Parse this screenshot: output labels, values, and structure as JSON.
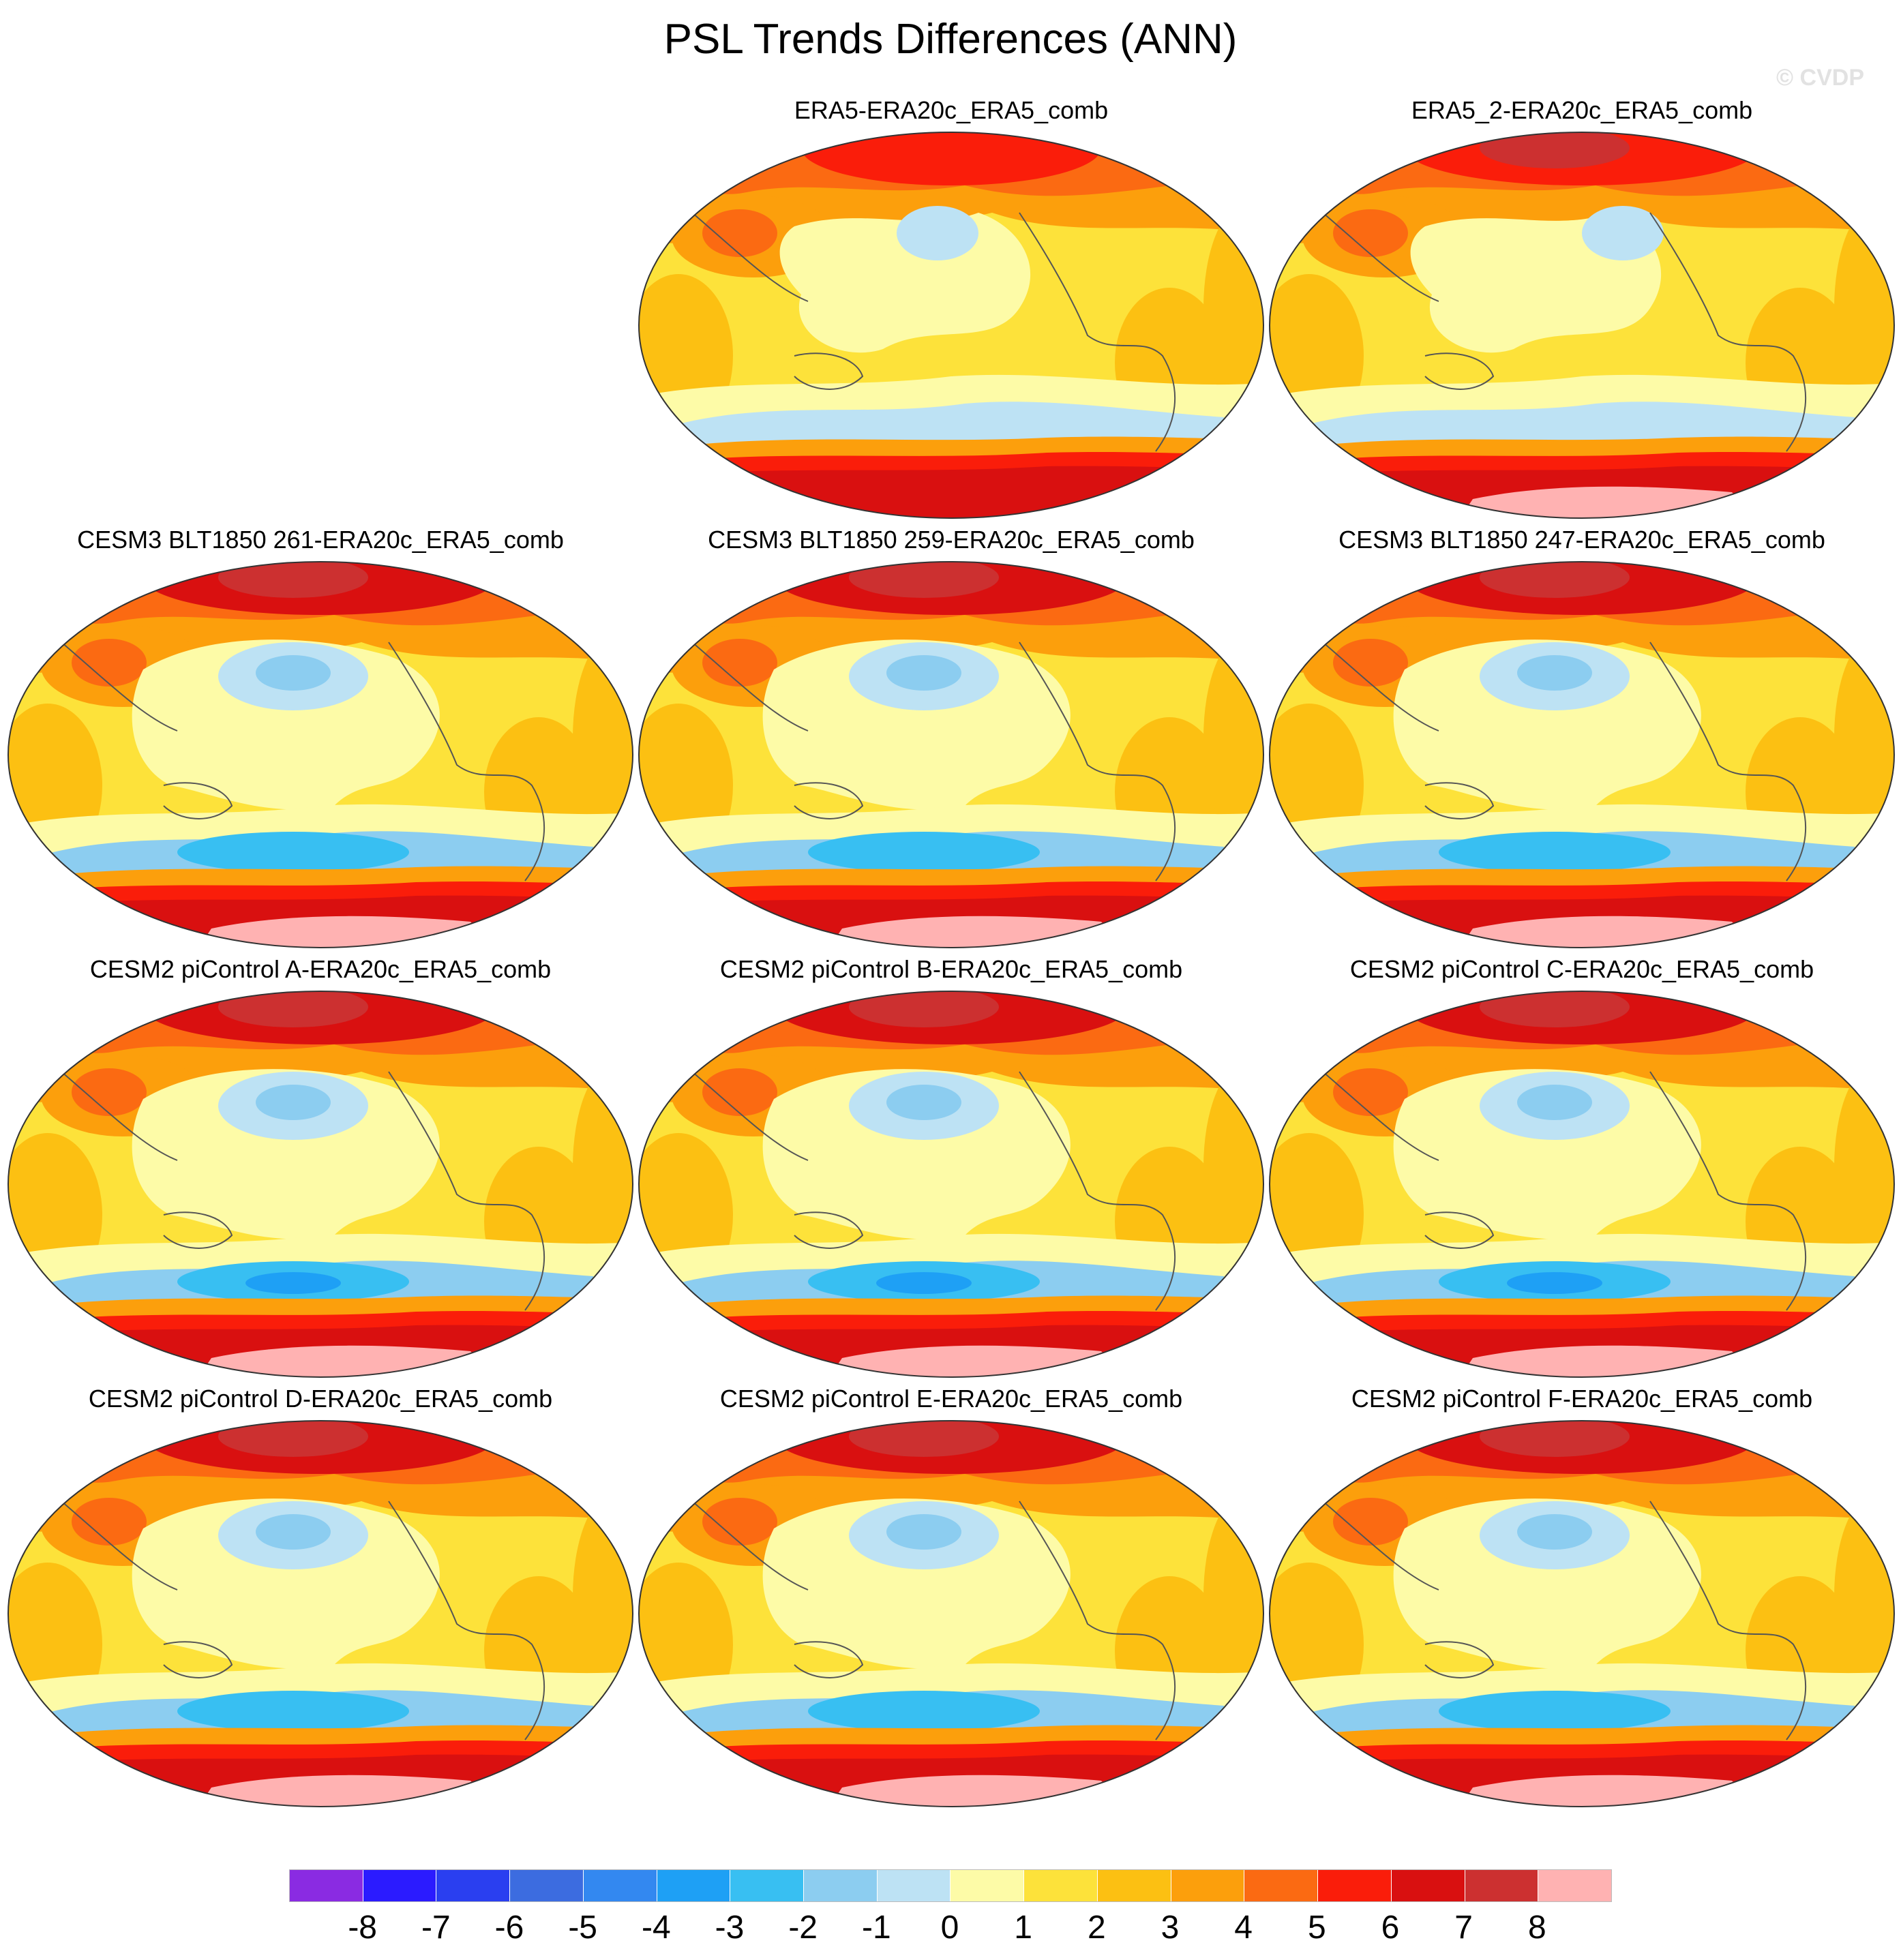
{
  "title": "PSL Trends Differences (ANN)",
  "watermark": "© CVDP",
  "projection": "Robinson (Pacific-centered)",
  "panels": [
    {
      "title": "ERA5-ERA20c_ERA5_comb",
      "variant": "obs1"
    },
    {
      "title": "ERA5_2-ERA20c_ERA5_comb",
      "variant": "obs2"
    },
    {
      "title": "CESM3 BLT1850 261-ERA20c_ERA5_comb",
      "variant": "m1"
    },
    {
      "title": "CESM3 BLT1850 259-ERA20c_ERA5_comb",
      "variant": "m2"
    },
    {
      "title": "CESM3 BLT1850 247-ERA20c_ERA5_comb",
      "variant": "m2"
    },
    {
      "title": "CESM2 piControl A-ERA20c_ERA5_comb",
      "variant": "m3"
    },
    {
      "title": "CESM2 piControl B-ERA20c_ERA5_comb",
      "variant": "m3"
    },
    {
      "title": "CESM2 piControl C-ERA20c_ERA5_comb",
      "variant": "m3"
    },
    {
      "title": "CESM2 piControl D-ERA20c_ERA5_comb",
      "variant": "m4"
    },
    {
      "title": "CESM2 piControl E-ERA20c_ERA5_comb",
      "variant": "m4"
    },
    {
      "title": "CESM2 piControl F-ERA20c_ERA5_comb",
      "variant": "m4"
    }
  ],
  "colorbar": {
    "colors": [
      "#8a2be2",
      "#2b1bff",
      "#2a3ff0",
      "#3c6ce0",
      "#3388f0",
      "#1ea0f5",
      "#38bff2",
      "#8ccdf0",
      "#bde2f4",
      "#fdfba7",
      "#fde23a",
      "#fcc012",
      "#fc9f0c",
      "#fb6a12",
      "#fa1d0a",
      "#d91010",
      "#cc3030",
      "#ffb2b2"
    ],
    "labels": [
      "-8",
      "-7",
      "-6",
      "-5",
      "-4",
      "-3",
      "-2",
      "-1",
      "0",
      "1",
      "2",
      "3",
      "4",
      "5",
      "6",
      "7",
      "8"
    ]
  }
}
